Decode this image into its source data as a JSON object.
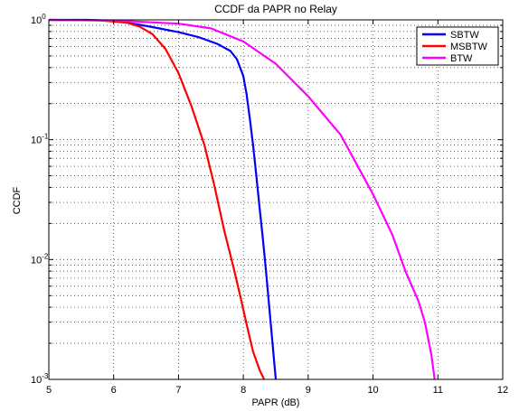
{
  "chart_data": {
    "type": "line",
    "title": "CCDF da PAPR no Relay",
    "xlabel": "PAPR (dB)",
    "ylabel": "CCDF",
    "xlim": [
      5,
      12
    ],
    "ylim": [
      0.001,
      1
    ],
    "yscale": "log",
    "grid": true,
    "legend_position": "top-right",
    "x_ticks": [
      "5",
      "6",
      "7",
      "8",
      "9",
      "10",
      "11",
      "12"
    ],
    "y_ticks": [
      {
        "value": 1,
        "mantissa": "10",
        "exponent": "0"
      },
      {
        "value": 0.1,
        "mantissa": "10",
        "exponent": "-1"
      },
      {
        "value": 0.01,
        "mantissa": "10",
        "exponent": "-2"
      },
      {
        "value": 0.001,
        "mantissa": "10",
        "exponent": "-3"
      }
    ],
    "series": [
      {
        "name": "SBTW",
        "color": "#0000ff",
        "points": [
          [
            5.0,
            1.0
          ],
          [
            5.6,
            1.0
          ],
          [
            6.0,
            0.98
          ],
          [
            6.3,
            0.93
          ],
          [
            6.6,
            0.87
          ],
          [
            7.0,
            0.79
          ],
          [
            7.3,
            0.72
          ],
          [
            7.6,
            0.63
          ],
          [
            7.8,
            0.55
          ],
          [
            7.9,
            0.47
          ],
          [
            8.0,
            0.34
          ],
          [
            8.05,
            0.24
          ],
          [
            8.1,
            0.15
          ],
          [
            8.15,
            0.09
          ],
          [
            8.2,
            0.05
          ],
          [
            8.25,
            0.027
          ],
          [
            8.3,
            0.015
          ],
          [
            8.35,
            0.008
          ],
          [
            8.4,
            0.004
          ],
          [
            8.45,
            0.002
          ],
          [
            8.5,
            0.001
          ]
        ]
      },
      {
        "name": "MSBTW",
        "color": "#ff0000",
        "points": [
          [
            5.0,
            1.0
          ],
          [
            5.8,
            0.99
          ],
          [
            6.2,
            0.95
          ],
          [
            6.4,
            0.88
          ],
          [
            6.6,
            0.76
          ],
          [
            6.8,
            0.57
          ],
          [
            7.0,
            0.36
          ],
          [
            7.2,
            0.19
          ],
          [
            7.4,
            0.09
          ],
          [
            7.55,
            0.042
          ],
          [
            7.7,
            0.018
          ],
          [
            7.85,
            0.0085
          ],
          [
            7.95,
            0.005
          ],
          [
            8.05,
            0.0029
          ],
          [
            8.15,
            0.0017
          ],
          [
            8.25,
            0.0012
          ],
          [
            8.32,
            0.001
          ]
        ]
      },
      {
        "name": "BTW",
        "color": "#ff00ff",
        "points": [
          [
            5.0,
            1.0
          ],
          [
            6.0,
            0.99
          ],
          [
            7.0,
            0.93
          ],
          [
            7.5,
            0.85
          ],
          [
            8.0,
            0.66
          ],
          [
            8.5,
            0.43
          ],
          [
            9.0,
            0.23
          ],
          [
            9.5,
            0.11
          ],
          [
            10.0,
            0.035
          ],
          [
            10.3,
            0.016
          ],
          [
            10.5,
            0.008
          ],
          [
            10.7,
            0.0045
          ],
          [
            10.8,
            0.003
          ],
          [
            10.9,
            0.0016
          ],
          [
            10.95,
            0.001
          ]
        ]
      }
    ]
  }
}
